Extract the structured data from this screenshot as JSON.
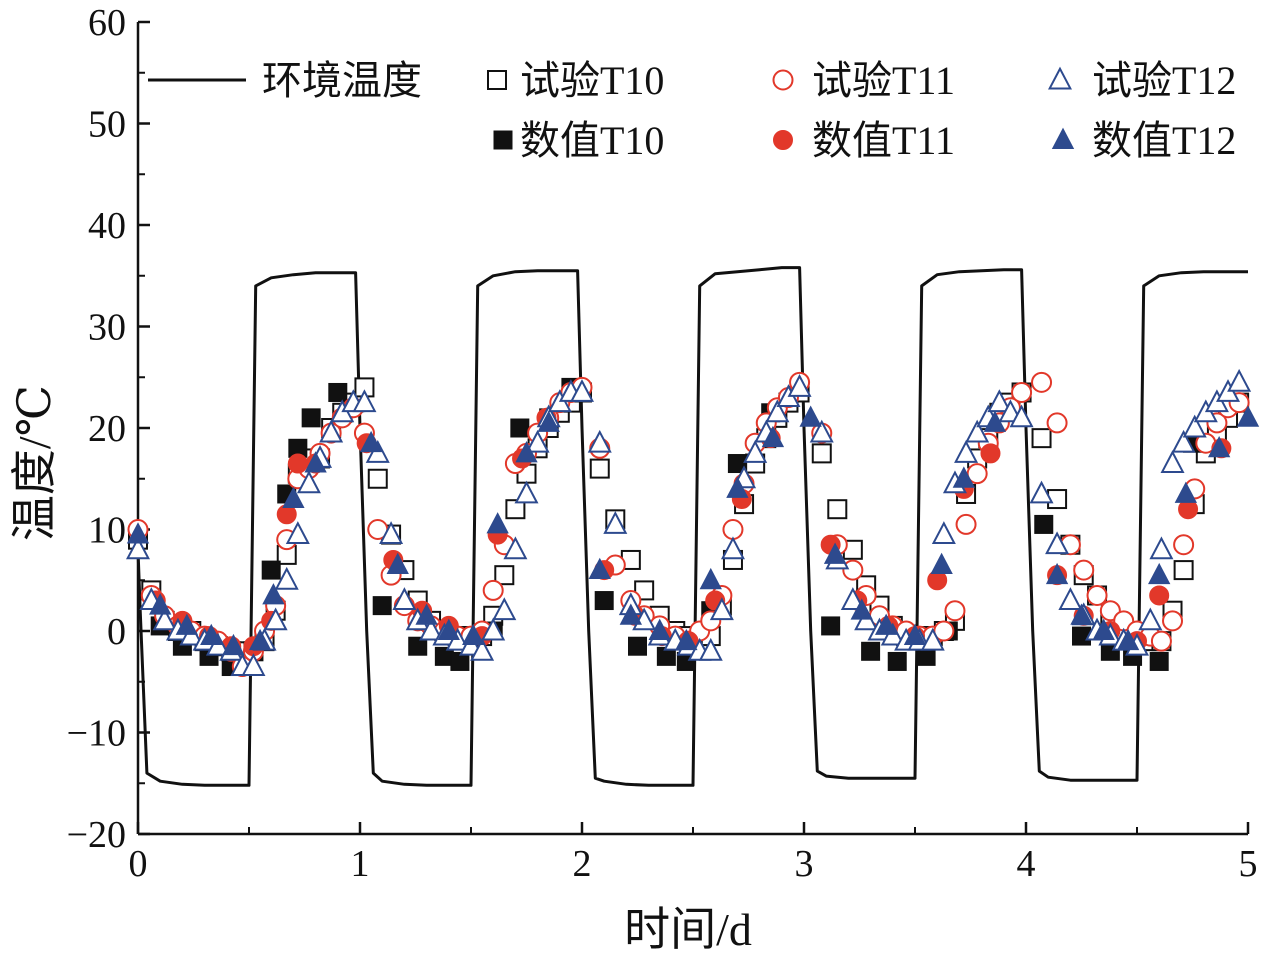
{
  "chart_data": {
    "type": "scatter",
    "title": "",
    "xlabel": "时间/d",
    "ylabel": "温度/℃",
    "xlim": [
      0,
      5
    ],
    "ylim": [
      -20,
      60
    ],
    "xticks": [
      "0",
      "1",
      "2",
      "3",
      "4",
      "5"
    ],
    "yticks": [
      "−20",
      "−10",
      "0",
      "10",
      "20",
      "30",
      "40",
      "50",
      "60"
    ],
    "grid": false,
    "legend_position": "top",
    "colors": {
      "black": "#111111",
      "red": "#e2382a",
      "blue": "#2d4a8e"
    },
    "legend": [
      {
        "label": "环境温度",
        "marker": "line",
        "color": "black",
        "filled": false
      },
      {
        "label": "试验T10",
        "marker": "square",
        "color": "black",
        "filled": false
      },
      {
        "label": "试验T11",
        "marker": "circle",
        "color": "red",
        "filled": false
      },
      {
        "label": "试验T12",
        "marker": "triangle",
        "color": "blue",
        "filled": false
      },
      {
        "label": "数值T10",
        "marker": "square",
        "color": "black",
        "filled": true
      },
      {
        "label": "数值T11",
        "marker": "circle",
        "color": "red",
        "filled": true
      },
      {
        "label": "数值T12",
        "marker": "triangle",
        "color": "blue",
        "filled": true
      }
    ],
    "series": [
      {
        "name": "环境温度",
        "kind": "line",
        "color": "black",
        "x": [
          0,
          0.01,
          0.04,
          0.1,
          0.2,
          0.3,
          0.42,
          0.5,
          0.53,
          0.6,
          0.7,
          0.8,
          0.9,
          0.98,
          1.0,
          1.03,
          1.06,
          1.1,
          1.2,
          1.3,
          1.42,
          1.5,
          1.53,
          1.6,
          1.7,
          1.8,
          1.9,
          1.98,
          2.0,
          2.03,
          2.06,
          2.1,
          2.2,
          2.3,
          2.42,
          2.5,
          2.53,
          2.6,
          2.7,
          2.8,
          2.9,
          2.98,
          3.0,
          3.03,
          3.06,
          3.1,
          3.2,
          3.3,
          3.42,
          3.5,
          3.53,
          3.6,
          3.7,
          3.8,
          3.9,
          3.98,
          4.0,
          4.03,
          4.06,
          4.1,
          4.2,
          4.3,
          4.42,
          4.5,
          4.53,
          4.6,
          4.7,
          4.8,
          4.9,
          5.0
        ],
        "y": [
          8,
          2,
          -14,
          -14.8,
          -15.1,
          -15.2,
          -15.2,
          -15.2,
          34,
          34.8,
          35.1,
          35.3,
          35.3,
          35.3,
          20,
          0,
          -14,
          -14.8,
          -15.1,
          -15.2,
          -15.2,
          -15.2,
          34,
          35,
          35.4,
          35.5,
          35.5,
          35.5,
          20,
          0,
          -14.5,
          -14.8,
          -15.1,
          -15.2,
          -15.2,
          -15.2,
          34,
          35.2,
          35.4,
          35.6,
          35.8,
          35.8,
          20,
          0,
          -13.8,
          -14.3,
          -14.5,
          -14.5,
          -14.5,
          -14.5,
          34,
          35.1,
          35.4,
          35.5,
          35.6,
          35.6,
          20,
          0,
          -13.8,
          -14.4,
          -14.7,
          -14.7,
          -14.7,
          -14.7,
          34,
          35,
          35.3,
          35.4,
          35.4,
          35.4
        ]
      },
      {
        "name": "试验T10",
        "kind": "marker",
        "marker": "square",
        "color": "black",
        "filled": false,
        "x": [
          0,
          0.06,
          0.12,
          0.18,
          0.24,
          0.3,
          0.36,
          0.42,
          0.47,
          0.52,
          0.57,
          0.62,
          0.67,
          0.72,
          0.77,
          0.82,
          0.87,
          0.92,
          0.97,
          1.02,
          1.08,
          1.14,
          1.2,
          1.26,
          1.32,
          1.38,
          1.44,
          1.5,
          1.55,
          1.6,
          1.65,
          1.7,
          1.75,
          1.8,
          1.85,
          1.9,
          1.95,
          2.0,
          2.08,
          2.15,
          2.22,
          2.28,
          2.35,
          2.42,
          2.48,
          2.53,
          2.58,
          2.63,
          2.68,
          2.73,
          2.78,
          2.83,
          2.88,
          2.93,
          2.98,
          3.08,
          3.15,
          3.22,
          3.28,
          3.34,
          3.4,
          3.46,
          3.52,
          3.58,
          3.63,
          3.68,
          3.73,
          3.78,
          3.83,
          3.88,
          3.93,
          3.98,
          4.07,
          4.14,
          4.2,
          4.26,
          4.32,
          4.38,
          4.44,
          4.5,
          4.56,
          4.61,
          4.66,
          4.71,
          4.76,
          4.81,
          4.86,
          4.91,
          4.96
        ],
        "y": [
          9,
          4,
          1,
          0,
          0,
          -1,
          -1.5,
          -2,
          -2,
          -2,
          -1,
          2,
          7.5,
          15.5,
          17,
          17,
          20,
          21.5,
          22.5,
          24,
          15,
          9.5,
          6,
          3,
          1,
          0,
          -0.5,
          -0.5,
          -0.5,
          1.5,
          5.5,
          12,
          15.5,
          18,
          20,
          21.5,
          22.5,
          23.5,
          16,
          11,
          7,
          4,
          1.5,
          0,
          -0.5,
          -0.5,
          -0.5,
          2.5,
          7,
          12.5,
          16.5,
          19,
          21,
          22.5,
          23.5,
          17.5,
          12,
          8,
          4.5,
          2.5,
          0.5,
          -0.5,
          -0.5,
          -0.5,
          0,
          1,
          13.5,
          17,
          19,
          21.5,
          22.5,
          23.5,
          19,
          13,
          8.5,
          5.5,
          3.5,
          1,
          0,
          -0.5,
          -1,
          -1,
          2,
          6,
          12.5,
          17.5,
          19.5,
          21,
          22.5
        ]
      },
      {
        "name": "试验T11",
        "kind": "marker",
        "marker": "circle",
        "color": "red",
        "filled": false,
        "x": [
          0,
          0.06,
          0.12,
          0.18,
          0.24,
          0.3,
          0.36,
          0.42,
          0.47,
          0.52,
          0.57,
          0.62,
          0.67,
          0.72,
          0.77,
          0.82,
          0.87,
          0.92,
          0.97,
          1.02,
          1.08,
          1.14,
          1.2,
          1.26,
          1.32,
          1.38,
          1.44,
          1.5,
          1.55,
          1.6,
          1.65,
          1.7,
          1.75,
          1.8,
          1.85,
          1.9,
          1.95,
          2.0,
          2.08,
          2.15,
          2.22,
          2.28,
          2.35,
          2.42,
          2.48,
          2.53,
          2.58,
          2.63,
          2.68,
          2.73,
          2.78,
          2.83,
          2.88,
          2.93,
          2.98,
          3.08,
          3.15,
          3.22,
          3.28,
          3.34,
          3.4,
          3.46,
          3.52,
          3.58,
          3.63,
          3.68,
          3.73,
          3.78,
          3.83,
          3.88,
          3.93,
          3.98,
          4.07,
          4.14,
          4.2,
          4.26,
          4.32,
          4.38,
          4.44,
          4.5,
          4.56,
          4.61,
          4.66,
          4.71,
          4.76,
          4.81,
          4.86,
          4.91,
          4.96
        ],
        "y": [
          10,
          3.5,
          1.5,
          0.5,
          0,
          -0.5,
          -1,
          -2,
          -3.5,
          -2,
          0,
          2.5,
          9,
          15,
          16,
          17.5,
          19.5,
          21,
          22,
          19.5,
          10,
          5.5,
          2.5,
          1,
          0.5,
          0,
          -0.5,
          -0.5,
          0,
          4,
          8.5,
          16.5,
          17.5,
          19.5,
          21,
          22.5,
          23.5,
          24,
          18,
          6.5,
          3,
          1.5,
          0.5,
          -0.5,
          -1,
          0,
          1,
          3.5,
          10,
          14.5,
          18.5,
          20.5,
          22,
          23,
          24.5,
          19.5,
          8.5,
          6,
          3.5,
          1.5,
          0.5,
          0,
          -0.5,
          -0.5,
          0,
          2,
          10.5,
          15.5,
          18.5,
          20.5,
          22,
          23.5,
          24.5,
          20.5,
          8.5,
          6,
          3.5,
          2,
          1,
          0,
          -0.5,
          -1,
          1,
          8.5,
          14,
          18.5,
          20.5,
          22,
          22.5
        ]
      },
      {
        "name": "试验T12",
        "kind": "marker",
        "marker": "triangle",
        "color": "blue",
        "filled": false,
        "x": [
          0,
          0.06,
          0.12,
          0.18,
          0.24,
          0.3,
          0.36,
          0.42,
          0.47,
          0.52,
          0.57,
          0.62,
          0.67,
          0.72,
          0.77,
          0.82,
          0.87,
          0.92,
          0.97,
          1.02,
          1.08,
          1.14,
          1.2,
          1.26,
          1.32,
          1.38,
          1.44,
          1.5,
          1.55,
          1.6,
          1.65,
          1.7,
          1.75,
          1.8,
          1.85,
          1.9,
          1.95,
          2.0,
          2.08,
          2.15,
          2.22,
          2.28,
          2.35,
          2.42,
          2.48,
          2.53,
          2.58,
          2.63,
          2.68,
          2.73,
          2.78,
          2.83,
          2.88,
          2.93,
          2.98,
          3.08,
          3.15,
          3.22,
          3.28,
          3.34,
          3.4,
          3.46,
          3.52,
          3.58,
          3.63,
          3.68,
          3.73,
          3.78,
          3.83,
          3.88,
          3.93,
          3.98,
          4.07,
          4.14,
          4.2,
          4.26,
          4.32,
          4.38,
          4.44,
          4.5,
          4.56,
          4.61,
          4.66,
          4.71,
          4.76,
          4.81,
          4.86,
          4.91,
          4.96
        ],
        "y": [
          8,
          3,
          1,
          0,
          -0.5,
          -1,
          -1.5,
          -2,
          -3.5,
          -3.5,
          -1,
          1,
          5,
          9.5,
          14.5,
          17,
          19.5,
          21.5,
          22.5,
          22.5,
          17.5,
          9.5,
          3,
          1,
          0,
          -0.5,
          -1,
          -1.5,
          -2,
          0,
          2,
          8,
          13.5,
          18.5,
          21,
          22.5,
          23.5,
          23.5,
          18.5,
          10.5,
          2.5,
          1,
          -0.5,
          -1,
          -1.5,
          -2,
          -2,
          2,
          8,
          15,
          17.5,
          19.5,
          21.5,
          23,
          24,
          19.5,
          7,
          3,
          1,
          0,
          -0.5,
          -1,
          -1,
          -1,
          9.5,
          14.5,
          17.5,
          19.5,
          21,
          22.5,
          21.5,
          21,
          13.5,
          8.5,
          3,
          1.5,
          0,
          -0.5,
          -1,
          -1.5,
          1,
          8,
          16.5,
          18.5,
          20,
          21.5,
          22.5,
          23.5,
          24.5
        ]
      },
      {
        "name": "数值T10",
        "kind": "marker",
        "marker": "square",
        "color": "black",
        "filled": true,
        "x": [
          0.1,
          0.2,
          0.32,
          0.42,
          0.52,
          0.6,
          0.67,
          0.72,
          0.78,
          0.9,
          1.1,
          1.26,
          1.38,
          1.45,
          1.6,
          1.72,
          1.85,
          1.95,
          2.1,
          2.25,
          2.38,
          2.47,
          2.58,
          2.7,
          2.85,
          3.12,
          3.3,
          3.42,
          3.55,
          3.65,
          4.08,
          4.25,
          4.38,
          4.48,
          4.6,
          4.75
        ],
        "y": [
          0.5,
          -1.5,
          -2.5,
          -3.5,
          -2,
          6,
          13.5,
          18,
          21,
          23.5,
          2.5,
          -1.5,
          -2.5,
          -3,
          0,
          20,
          21,
          24,
          3,
          -1.5,
          -2.5,
          -3,
          2,
          16.5,
          21.5,
          0.5,
          -2,
          -3,
          -2.5,
          0,
          10.5,
          -0.5,
          -2,
          -2.5,
          -3,
          18.5
        ]
      },
      {
        "name": "数值T11",
        "kind": "marker",
        "marker": "circle",
        "color": "red",
        "filled": true,
        "x": [
          0.08,
          0.2,
          0.32,
          0.42,
          0.52,
          0.6,
          0.67,
          0.72,
          0.8,
          1.03,
          1.15,
          1.28,
          1.4,
          1.55,
          1.62,
          1.73,
          1.84,
          2.1,
          2.24,
          2.36,
          2.48,
          2.6,
          2.72,
          2.85,
          3.12,
          3.24,
          3.38,
          3.5,
          3.6,
          3.72,
          3.84,
          4.14,
          4.26,
          4.38,
          4.5,
          4.6,
          4.73,
          4.88
        ],
        "y": [
          3,
          1,
          -0.5,
          -1.5,
          -1.5,
          1,
          11.5,
          16.5,
          16.5,
          18.5,
          7,
          2,
          0.5,
          -0.5,
          9.5,
          17,
          21,
          6,
          1.5,
          -0.5,
          -1,
          3,
          13,
          19,
          8.5,
          3,
          0.5,
          -0.5,
          5,
          14,
          17.5,
          5.5,
          1.5,
          0,
          -1,
          3.5,
          12,
          18
        ]
      },
      {
        "name": "数值T12",
        "kind": "marker",
        "marker": "triangle",
        "color": "blue",
        "filled": true,
        "x": [
          0,
          0.1,
          0.22,
          0.33,
          0.43,
          0.55,
          0.61,
          0.7,
          0.8,
          1.05,
          1.17,
          1.3,
          1.4,
          1.51,
          1.62,
          1.75,
          1.85,
          2.08,
          2.22,
          2.35,
          2.47,
          2.58,
          2.7,
          2.86,
          3.03,
          3.14,
          3.26,
          3.37,
          3.5,
          3.62,
          3.72,
          3.86,
          4.14,
          4.25,
          4.35,
          4.46,
          4.6,
          4.72,
          4.87,
          5.0
        ],
        "y": [
          9.5,
          2.5,
          0.5,
          -0.5,
          -1.5,
          -1,
          3.5,
          13,
          16.5,
          18.5,
          6.5,
          1.5,
          0,
          -0.5,
          10.5,
          17.5,
          20.5,
          6,
          1.5,
          0,
          -1,
          5,
          14,
          19,
          21,
          7.5,
          2,
          0.5,
          -0.5,
          6.5,
          15,
          20.5,
          5.5,
          1.5,
          0,
          -1,
          5.5,
          13.5,
          18,
          21
        ]
      }
    ]
  }
}
